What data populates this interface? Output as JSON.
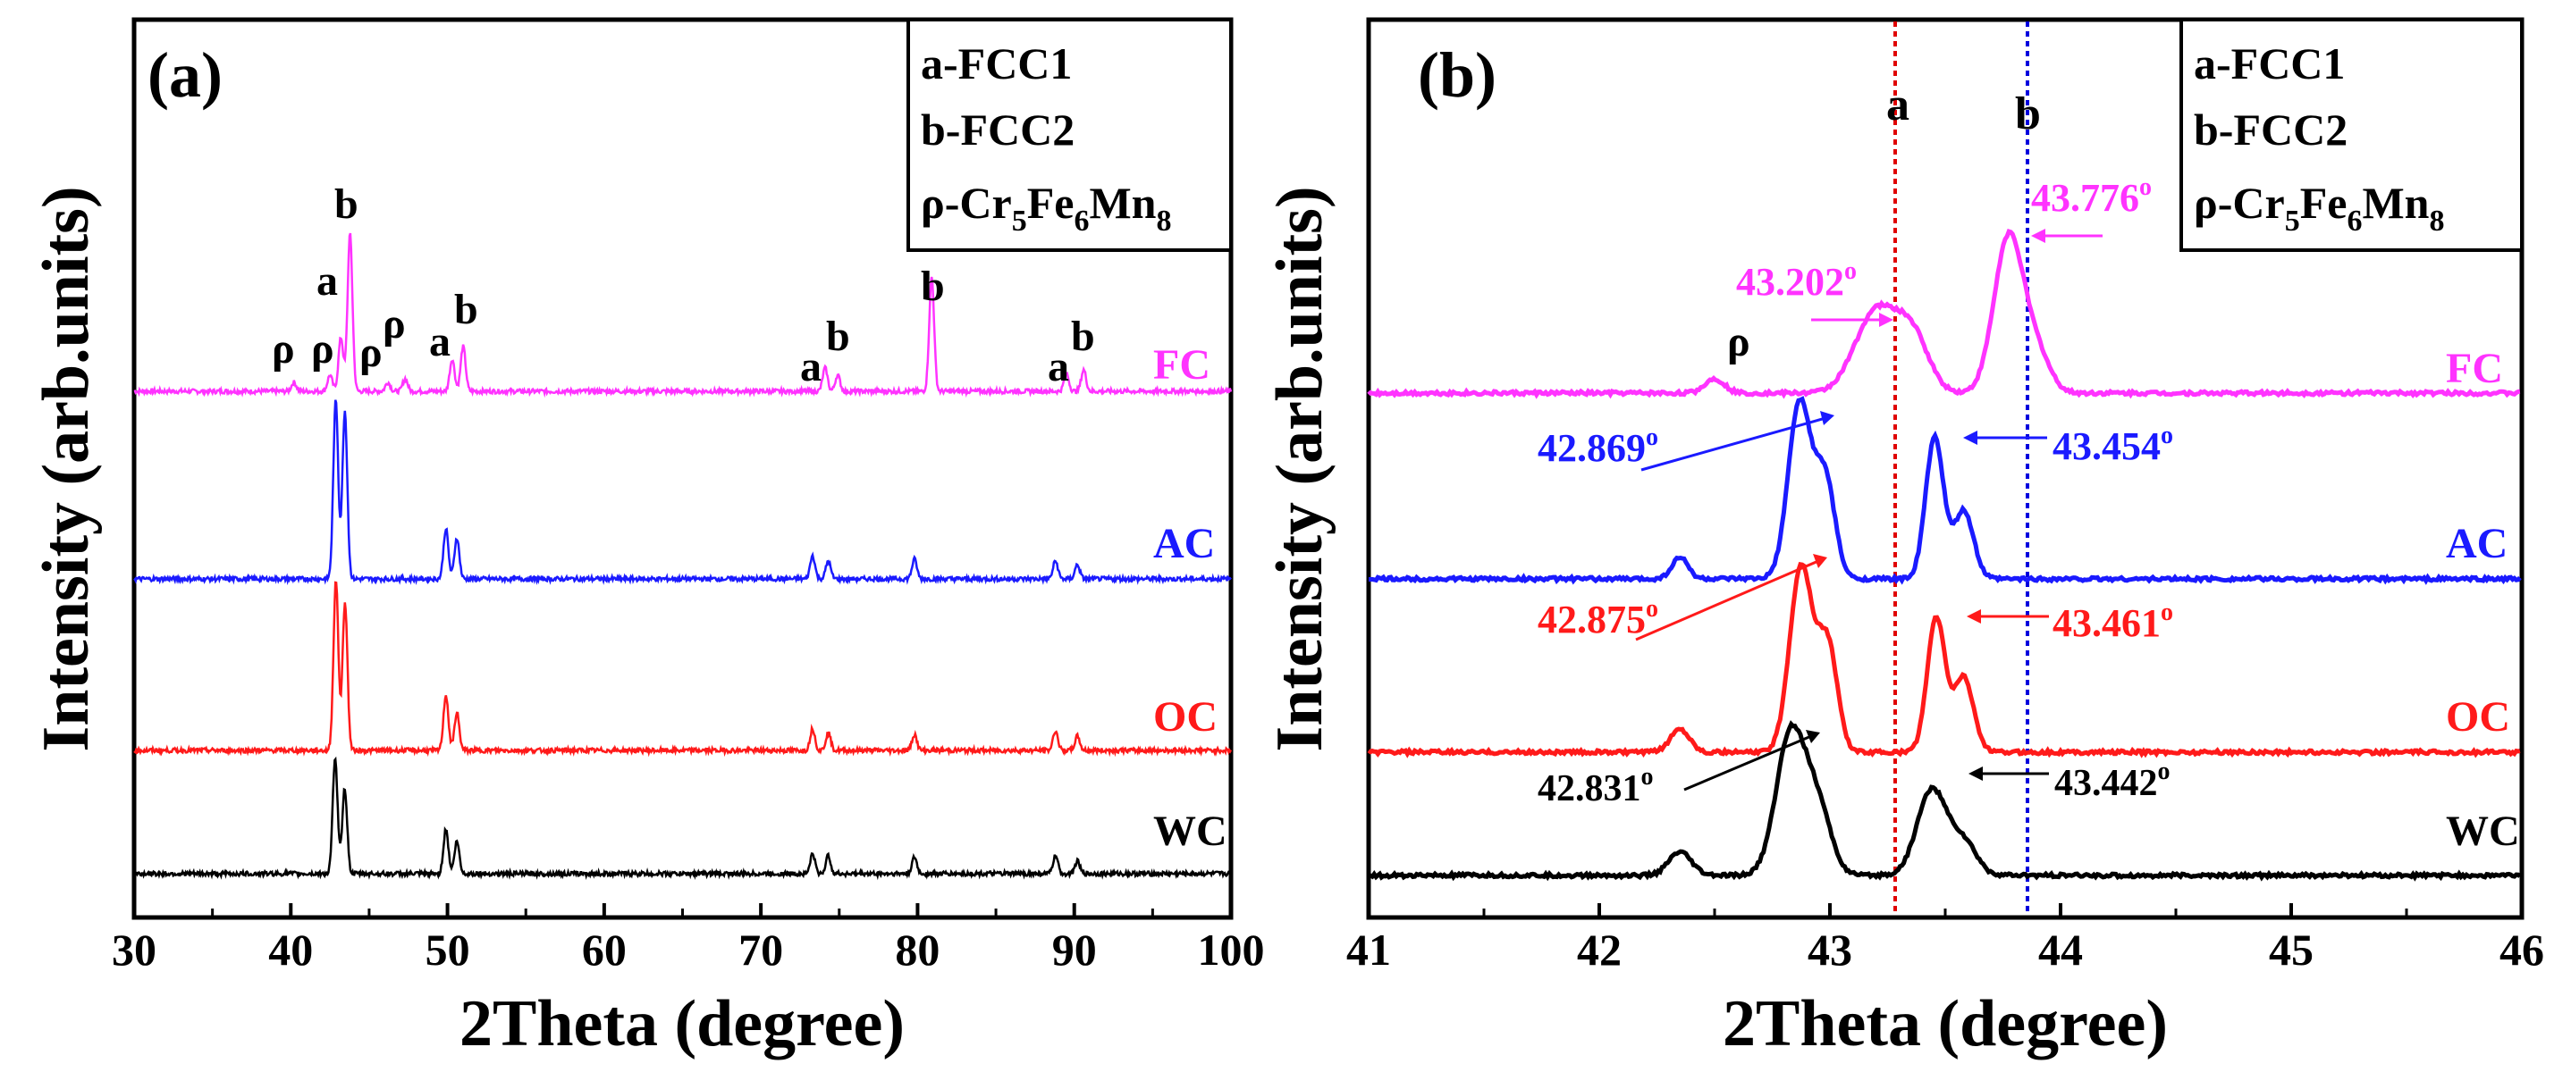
{
  "figure": {
    "panel_a": {
      "panel_label": "(a)",
      "xlabel": "2Theta (degree)",
      "ylabel": "Intensity (arb.units)",
      "xlim": [
        30,
        100
      ],
      "xticks": [
        "30",
        "40",
        "50",
        "60",
        "70",
        "80",
        "90",
        "100"
      ],
      "legend": {
        "line1": "a-FCC1",
        "line2": "b-FCC2",
        "line3_main": "ρ-Cr",
        "sub1": "5",
        "mid1": "Fe",
        "sub2": "6",
        "mid2": "Mn",
        "sub3": "8"
      },
      "series_labels": [
        "FC",
        "AC",
        "OC",
        "WC"
      ],
      "peak_letters": {
        "rho": "ρ",
        "a": "a",
        "b": "b"
      }
    },
    "panel_b": {
      "panel_label": "(b)",
      "xlabel": "2Theta (degree)",
      "ylabel": "Intensity (arb.units)",
      "xlim": [
        41,
        46
      ],
      "xticks": [
        "41",
        "42",
        "43",
        "44",
        "45",
        "46"
      ],
      "legend": {
        "line1": "a-FCC1",
        "line2": "b-FCC2",
        "line3_main": "ρ-Cr",
        "sub1": "5",
        "mid1": "Fe",
        "sub2": "6",
        "mid2": "Mn",
        "sub3": "8"
      },
      "series_labels": [
        "FC",
        "AC",
        "OC",
        "WC"
      ],
      "ref_line_labels": {
        "a": "a",
        "b": "b"
      },
      "rho_label": "ρ",
      "annotations": [
        {
          "text": "43.202",
          "sup": "o",
          "series": "FC"
        },
        {
          "text": "43.776",
          "sup": "o",
          "series": "FC"
        },
        {
          "text": "42.869",
          "sup": "o",
          "series": "AC"
        },
        {
          "text": "43.454",
          "sup": "o",
          "series": "AC"
        },
        {
          "text": "42.875",
          "sup": "o",
          "series": "OC"
        },
        {
          "text": "43.461",
          "sup": "o",
          "series": "OC"
        },
        {
          "text": "42.831",
          "sup": "o",
          "series": "WC"
        },
        {
          "text": "43.442",
          "sup": "o",
          "series": "WC"
        }
      ]
    }
  },
  "colors": {
    "FC": "#ff33ff",
    "AC": "#1a1aff",
    "OC": "#ff1a1a",
    "WC": "#000000",
    "ref_a": "#e00000",
    "ref_b": "#0000dd"
  },
  "chart_data": [
    {
      "type": "line",
      "title": "(a)",
      "xlabel": "2Theta (degree)",
      "ylabel": "Intensity (arb.units)",
      "xlim": [
        30,
        100
      ],
      "series": [
        {
          "name": "FC",
          "peaks": [
            {
              "x": 40.2,
              "label": "ρ"
            },
            {
              "x": 42.5,
              "label": "ρ"
            },
            {
              "x": 43.2,
              "label": "a"
            },
            {
              "x": 43.78,
              "label": "b"
            },
            {
              "x": 46.2,
              "label": "ρ"
            },
            {
              "x": 47.3,
              "label": "ρ"
            },
            {
              "x": 50.3,
              "label": "a"
            },
            {
              "x": 51.0,
              "label": "b"
            },
            {
              "x": 74.1,
              "label": "a"
            },
            {
              "x": 74.9,
              "label": "b"
            },
            {
              "x": 80.9,
              "label": "b"
            },
            {
              "x": 89.5,
              "label": "a"
            },
            {
              "x": 90.6,
              "label": "b"
            }
          ]
        },
        {
          "name": "AC",
          "peaks": [
            {
              "x": 42.87
            },
            {
              "x": 43.45
            },
            {
              "x": 49.9
            },
            {
              "x": 50.6
            },
            {
              "x": 73.3
            },
            {
              "x": 74.3
            },
            {
              "x": 79.8
            },
            {
              "x": 88.8
            },
            {
              "x": 90.2
            }
          ]
        },
        {
          "name": "OC",
          "peaks": [
            {
              "x": 42.88
            },
            {
              "x": 43.46
            },
            {
              "x": 49.9
            },
            {
              "x": 50.6
            },
            {
              "x": 73.3
            },
            {
              "x": 74.3
            },
            {
              "x": 79.8
            },
            {
              "x": 88.8
            },
            {
              "x": 90.2
            }
          ]
        },
        {
          "name": "WC",
          "peaks": [
            {
              "x": 42.83
            },
            {
              "x": 43.44
            },
            {
              "x": 49.9
            },
            {
              "x": 50.6
            },
            {
              "x": 73.3
            },
            {
              "x": 74.3
            },
            {
              "x": 79.8
            },
            {
              "x": 88.8
            },
            {
              "x": 90.2
            }
          ]
        }
      ]
    },
    {
      "type": "line",
      "title": "(b)",
      "xlabel": "2Theta (degree)",
      "ylabel": "Intensity (arb.units)",
      "xlim": [
        41,
        46
      ],
      "reference_lines": [
        {
          "x": 43.2,
          "label": "a"
        },
        {
          "x": 43.776,
          "label": "b"
        }
      ],
      "series": [
        {
          "name": "FC",
          "peaks": [
            {
              "x": 42.5,
              "label": "ρ"
            },
            {
              "x": 43.202,
              "label": "43.202°"
            },
            {
              "x": 43.776,
              "label": "43.776°"
            }
          ]
        },
        {
          "name": "AC",
          "peaks": [
            {
              "x": 42.869,
              "label": "42.869°"
            },
            {
              "x": 43.454,
              "label": "43.454°"
            }
          ]
        },
        {
          "name": "OC",
          "peaks": [
            {
              "x": 42.875,
              "label": "42.875°"
            },
            {
              "x": 43.461,
              "label": "43.461°"
            }
          ]
        },
        {
          "name": "WC",
          "peaks": [
            {
              "x": 42.831,
              "label": "42.831°"
            },
            {
              "x": 43.442,
              "label": "43.442°"
            }
          ]
        }
      ]
    }
  ]
}
